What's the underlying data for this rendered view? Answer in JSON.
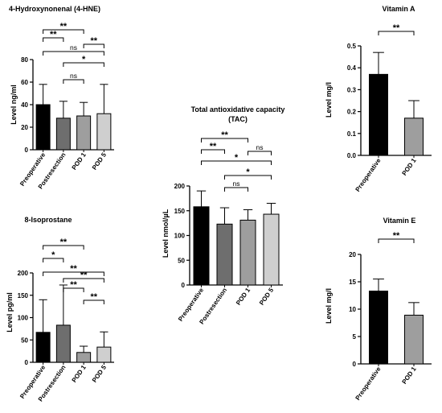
{
  "colors": {
    "Preoperative": "#000000",
    "Postresection": "#6e6e6e",
    "POD 1": "#9e9e9e",
    "POD 5": "#cfcfcf",
    "axis": "#000000"
  },
  "chart_data": [
    {
      "id": "hne",
      "type": "bar",
      "title": "4-Hydroxynonenal  (4-HNE)",
      "ylabel": "Level ng/ml",
      "xlabel": "",
      "categories": [
        "Preoperative",
        "Postresection",
        "POD 1",
        "POD 5"
      ],
      "values": [
        40,
        28,
        30,
        32
      ],
      "error_upper": [
        58,
        43,
        42,
        58
      ],
      "ylim": [
        0,
        80
      ],
      "yticks": [
        0,
        20,
        40,
        60,
        80
      ],
      "significance": [
        {
          "from": 0,
          "to": 2,
          "label": "**"
        },
        {
          "from": 0,
          "to": 1,
          "label": "**"
        },
        {
          "from": 2,
          "to": 3,
          "label": "**"
        },
        {
          "from": 0,
          "to": 3,
          "label": "ns"
        },
        {
          "from": 1,
          "to": 3,
          "label": "*"
        },
        {
          "from": 1,
          "to": 2,
          "label": "ns"
        }
      ]
    },
    {
      "id": "iso",
      "type": "bar",
      "title": "8-Isoprostane",
      "ylabel": "Level pg/ml",
      "xlabel": "",
      "categories": [
        "Preoperative",
        "Postresection",
        "POD 1",
        "POD 5"
      ],
      "values": [
        67,
        83,
        22,
        34
      ],
      "error_upper": [
        140,
        173,
        36,
        68
      ],
      "ylim": [
        0,
        200
      ],
      "yticks": [
        0,
        50,
        100,
        150,
        200
      ],
      "significance": [
        {
          "from": 0,
          "to": 2,
          "label": "**"
        },
        {
          "from": 0,
          "to": 1,
          "label": "*"
        },
        {
          "from": 0,
          "to": 3,
          "label": "**"
        },
        {
          "from": 1,
          "to": 3,
          "label": "**"
        },
        {
          "from": 1,
          "to": 2,
          "label": "**"
        },
        {
          "from": 2,
          "to": 3,
          "label": "**"
        }
      ]
    },
    {
      "id": "tac",
      "type": "bar",
      "title": "Total antioxidative capacity",
      "subtitle": "(TAC)",
      "ylabel": "Level nmol/µL",
      "xlabel": "",
      "categories": [
        "Preoperative",
        "Postresection",
        "POD 1",
        "POD 5"
      ],
      "values": [
        158,
        123,
        131,
        143
      ],
      "error_upper": [
        190,
        156,
        152,
        165
      ],
      "ylim": [
        0,
        200
      ],
      "yticks": [
        0,
        50,
        100,
        150,
        200
      ],
      "significance": [
        {
          "from": 0,
          "to": 2,
          "label": "**"
        },
        {
          "from": 0,
          "to": 1,
          "label": "**"
        },
        {
          "from": 2,
          "to": 3,
          "label": "ns"
        },
        {
          "from": 0,
          "to": 3,
          "label": "*"
        },
        {
          "from": 1,
          "to": 3,
          "label": "*"
        },
        {
          "from": 1,
          "to": 2,
          "label": "ns"
        }
      ]
    },
    {
      "id": "vita",
      "type": "bar",
      "title": "Vitamin A",
      "ylabel": "Level mg/l",
      "xlabel": "",
      "categories": [
        "Preoperative",
        "POD 1"
      ],
      "values": [
        0.37,
        0.17
      ],
      "error_upper": [
        0.47,
        0.25
      ],
      "ylim": [
        0,
        0.5
      ],
      "yticks": [
        "0.0",
        "0.1",
        "0.2",
        "0.3",
        "0.4",
        "0.5"
      ],
      "significance": [
        {
          "from": 0,
          "to": 1,
          "label": "**"
        }
      ]
    },
    {
      "id": "vite",
      "type": "bar",
      "title": "Vitamin E",
      "ylabel": "Level mg/l",
      "xlabel": "",
      "categories": [
        "Preoperative",
        "POD 1"
      ],
      "values": [
        13.3,
        8.9
      ],
      "error_upper": [
        15.5,
        11.2
      ],
      "ylim": [
        0,
        20
      ],
      "yticks": [
        0,
        5,
        10,
        15,
        20
      ],
      "significance": [
        {
          "from": 0,
          "to": 1,
          "label": "**"
        }
      ]
    }
  ]
}
